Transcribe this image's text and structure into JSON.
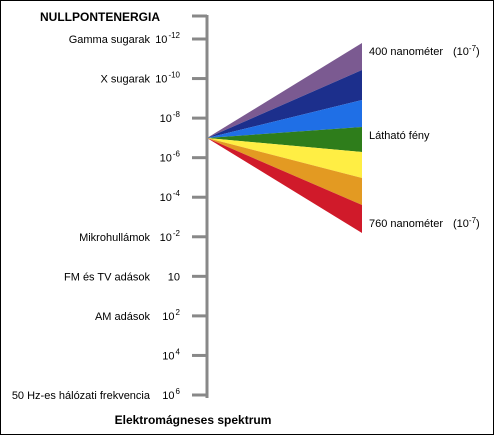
{
  "header": {
    "title": "NULLPONTENERGIA"
  },
  "scale": {
    "ticks": [
      {
        "label": "Gamma sugarak",
        "base": "10",
        "exponent": "-12"
      },
      {
        "label": "X sugarak",
        "base": "10",
        "exponent": "-10"
      },
      {
        "base": "10",
        "exponent": "-8"
      },
      {
        "base": "10",
        "exponent": "-6"
      },
      {
        "base": "10",
        "exponent": "-4"
      },
      {
        "label": "Mikrohullámok",
        "base": "10",
        "exponent": "-2"
      },
      {
        "label": "FM és TV adások",
        "base": "10"
      },
      {
        "label": "AM adások",
        "base": "10",
        "exponent": "2"
      },
      {
        "base": "10",
        "exponent": "4"
      },
      {
        "label": "50 Hz-es hálózati frekvencia",
        "base": "10",
        "exponent": "6"
      }
    ]
  },
  "visible": {
    "upper": {
      "text": "400 nanométer",
      "note_open": "(10",
      "note_exponent": "-7",
      "note_close": ")"
    },
    "middle": {
      "text": "Látható fény"
    },
    "lower": {
      "text": "760 nanométer",
      "note_open": "(10",
      "note_exponent": "-7",
      "note_close": ")"
    }
  },
  "caption": "Elektromágneses spektrum"
}
